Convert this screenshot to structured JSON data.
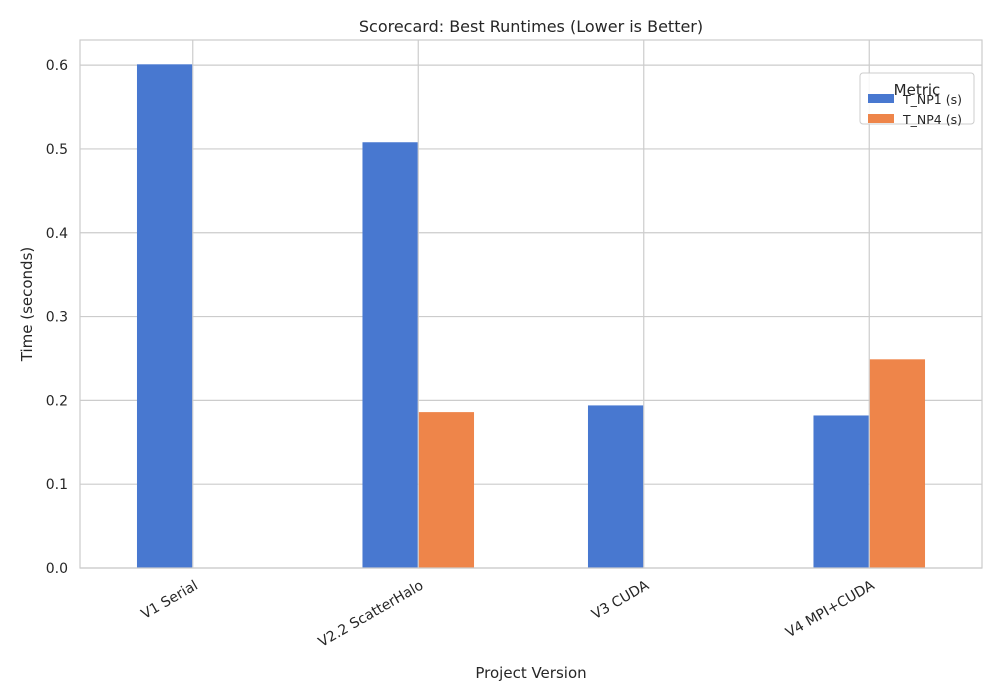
{
  "chart_data": {
    "type": "bar",
    "title": "Scorecard: Best Runtimes (Lower is Better)",
    "xlabel": "Project Version",
    "ylabel": "Time (seconds)",
    "categories": [
      "V1 Serial",
      "V2.2 ScatterHalo",
      "V3 CUDA",
      "V4 MPI+CUDA"
    ],
    "series": [
      {
        "name": "T_NP1 (s)",
        "color": "#4878d0",
        "values": [
          0.601,
          0.508,
          0.194,
          0.182
        ]
      },
      {
        "name": "T_NP4 (s)",
        "color": "#ee854a",
        "values": [
          null,
          0.186,
          null,
          0.249
        ]
      }
    ],
    "ylim": [
      0,
      0.63
    ],
    "yticks": [
      "0.0",
      "0.1",
      "0.2",
      "0.3",
      "0.4",
      "0.5",
      "0.6"
    ],
    "grid": true,
    "legend": {
      "title": "Metric",
      "placement": "top-right"
    }
  }
}
